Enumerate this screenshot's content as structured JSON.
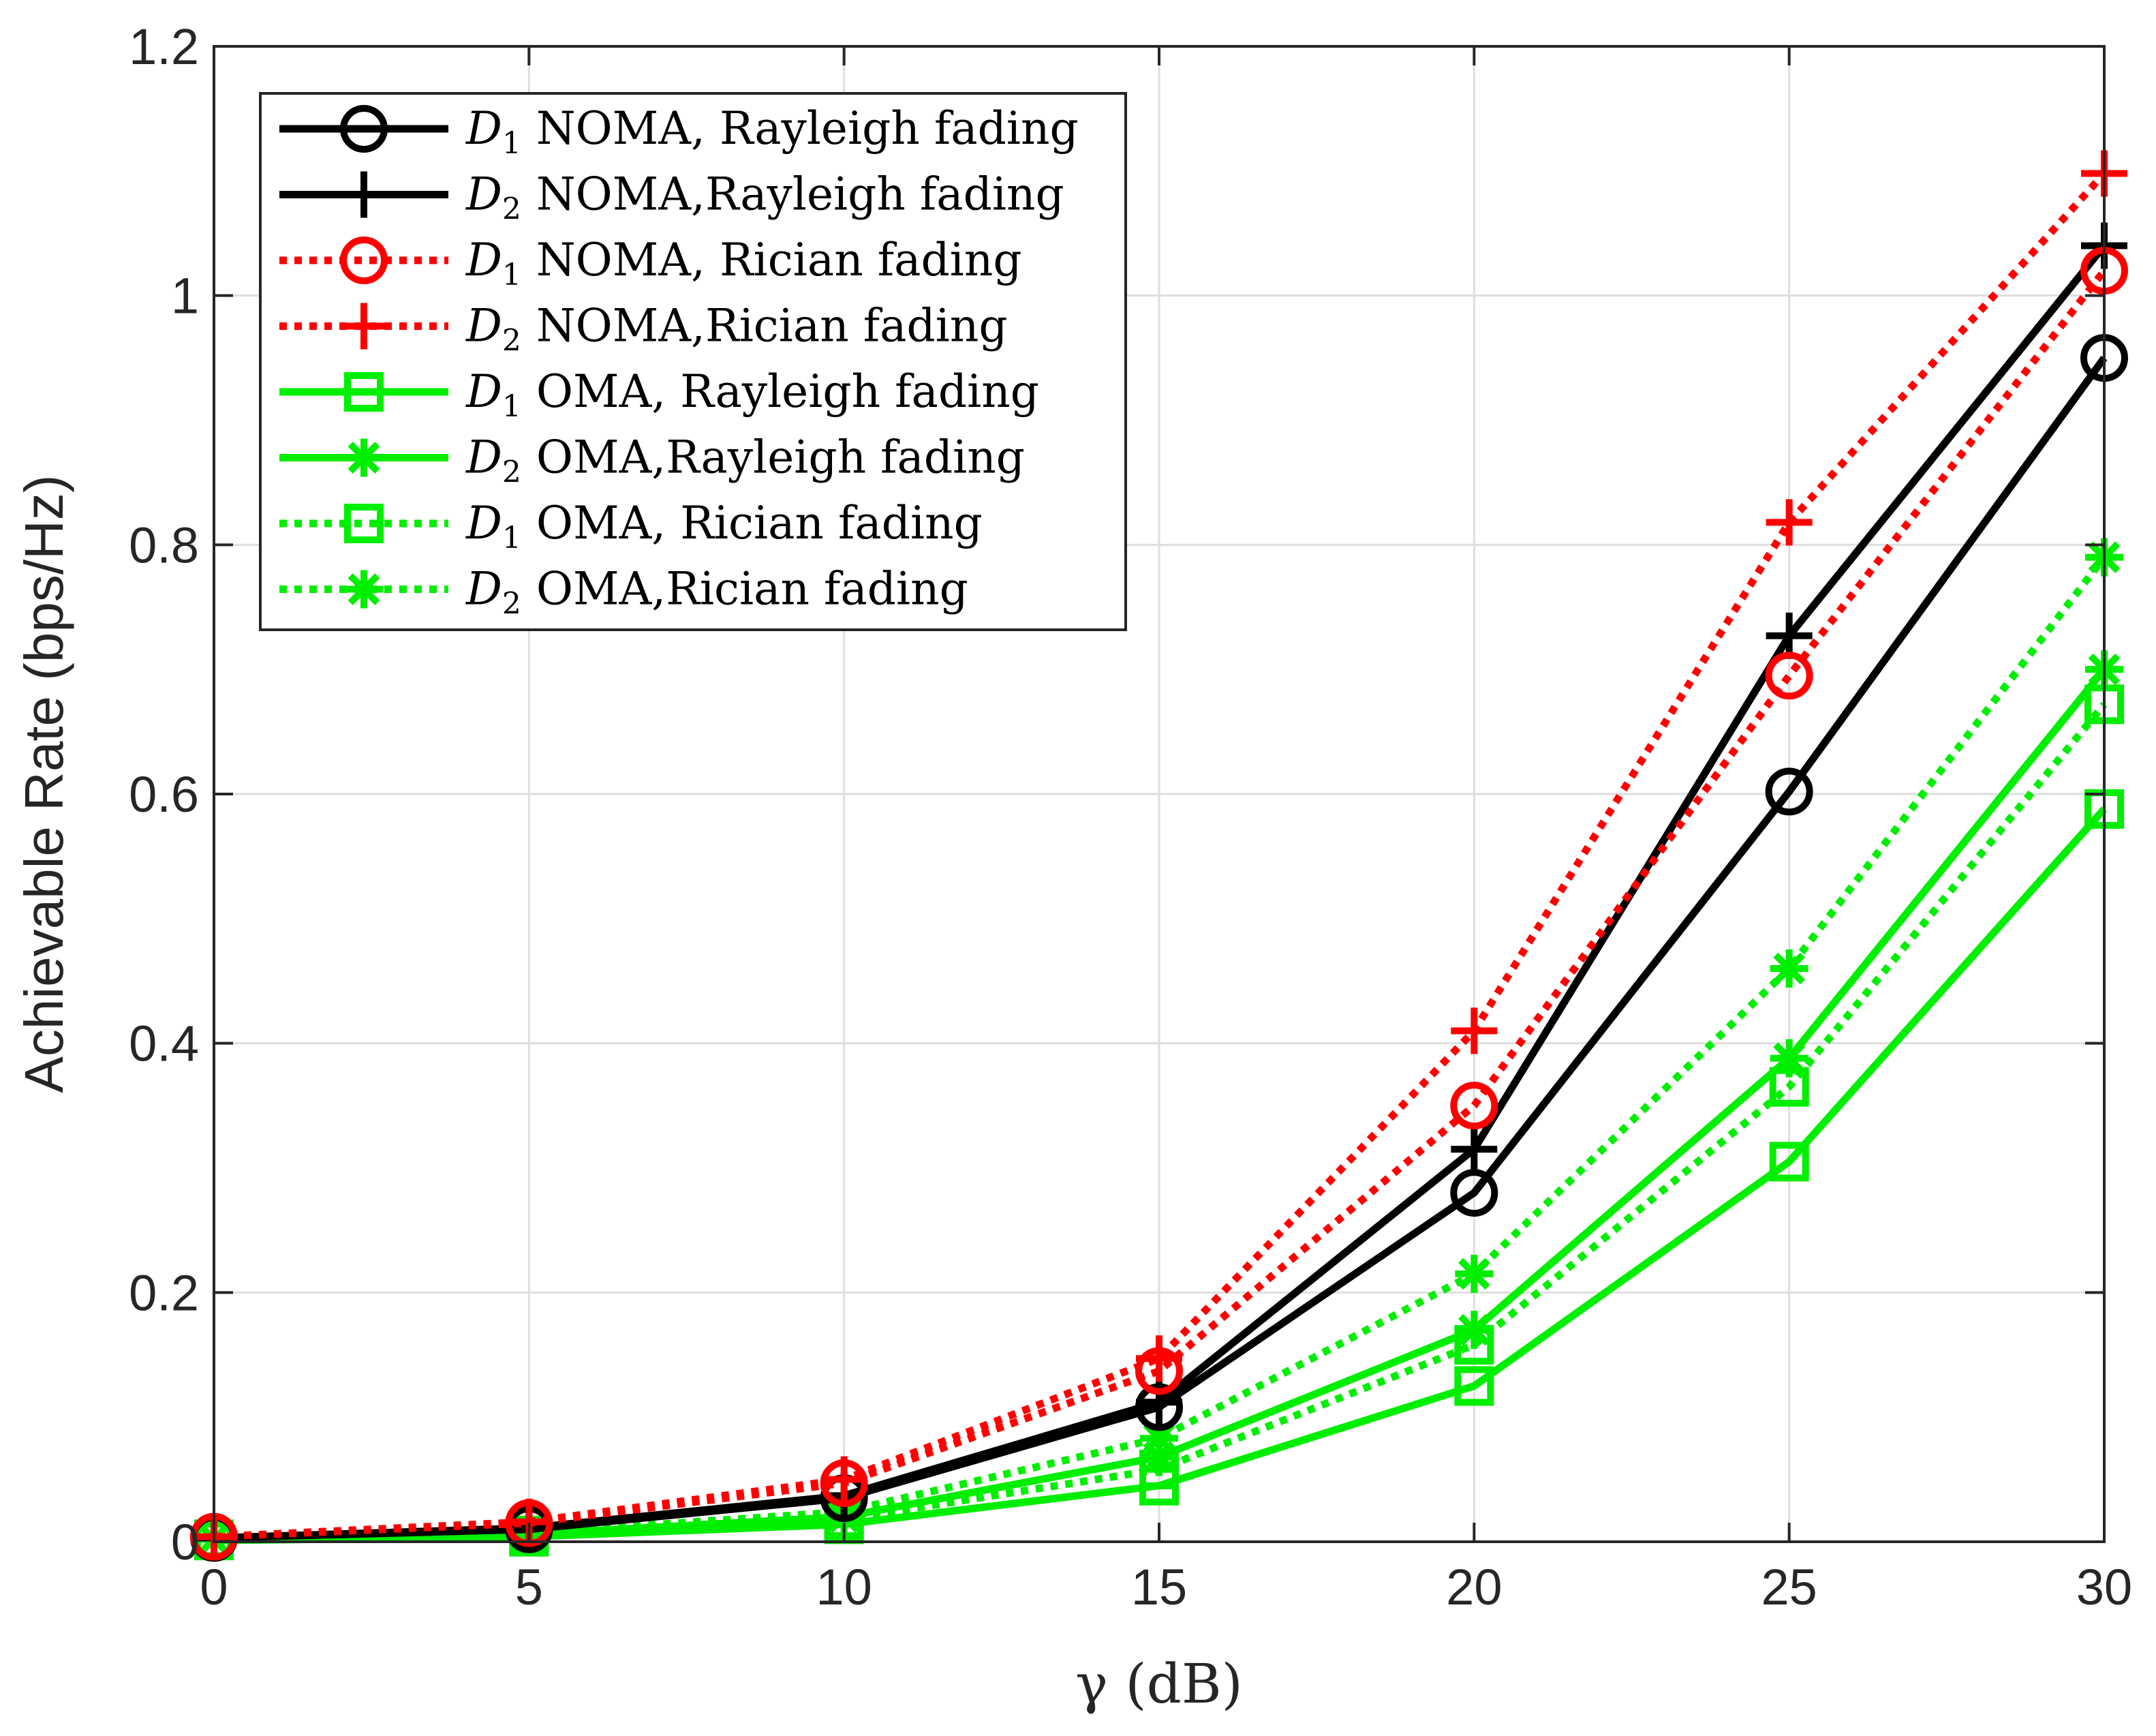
{
  "chart_data": {
    "type": "line",
    "title": "",
    "xlabel": "γ (dB)",
    "ylabel": "Achievable Rate (bps/Hz)",
    "x": [
      0,
      5,
      10,
      15,
      20,
      25,
      30
    ],
    "xlim": [
      0,
      30
    ],
    "ylim": [
      0,
      1.2
    ],
    "xticks": [
      0,
      5,
      10,
      15,
      20,
      25,
      30
    ],
    "xtick_labels": [
      "0",
      "5",
      "10",
      "15",
      "20",
      "25",
      "30"
    ],
    "yticks": [
      0,
      0.2,
      0.4,
      0.6,
      0.8,
      1,
      1.2
    ],
    "ytick_labels": [
      "0",
      "0.2",
      "0.4",
      "0.6",
      "0.8",
      "1",
      "1.2"
    ],
    "grid": true,
    "legend_position": "top-left",
    "series": [
      {
        "name": "D1 NOMA, Rayleigh fading",
        "var": "D",
        "sub": "1",
        "label": "NOMA, Rayleigh fading",
        "color": "#000000",
        "style": "solid",
        "marker": "circle",
        "values": [
          0.003,
          0.01,
          0.035,
          0.108,
          0.28,
          0.602,
          0.95
        ]
      },
      {
        "name": "D2 NOMA,Rayleigh fading",
        "var": "D",
        "sub": "2",
        "label": "NOMA,Rayleigh fading",
        "color": "#000000",
        "style": "solid",
        "marker": "plus",
        "values": [
          0.003,
          0.011,
          0.037,
          0.112,
          0.315,
          0.727,
          1.04
        ]
      },
      {
        "name": "D1 NOMA, Rician fading",
        "var": "D",
        "sub": "1",
        "label": "NOMA, Rician fading",
        "color": "#ff0000",
        "style": "dotted",
        "marker": "circle",
        "values": [
          0.004,
          0.015,
          0.047,
          0.137,
          0.35,
          0.695,
          1.02
        ]
      },
      {
        "name": "D2 NOMA,Rician fading",
        "var": "D",
        "sub": "2",
        "label": "NOMA,Rician fading",
        "color": "#ff0000",
        "style": "dotted",
        "marker": "plus",
        "values": [
          0.004,
          0.016,
          0.05,
          0.147,
          0.41,
          0.818,
          1.098
        ]
      },
      {
        "name": "D1 OMA, Rayleigh fading",
        "var": "D",
        "sub": "1",
        "label": "OMA, Rayleigh fading",
        "color": "#00ee00",
        "style": "solid",
        "marker": "square",
        "values": [
          0.001,
          0.004,
          0.014,
          0.045,
          0.125,
          0.305,
          0.588
        ]
      },
      {
        "name": "D2 OMA,Rayleigh fading",
        "var": "D",
        "sub": "2",
        "label": "OMA,Rayleigh fading",
        "color": "#00ee00",
        "style": "solid",
        "marker": "asterisk",
        "values": [
          0.002,
          0.006,
          0.02,
          0.068,
          0.17,
          0.388,
          0.7
        ]
      },
      {
        "name": "D1 OMA, Rician fading",
        "var": "D",
        "sub": "1",
        "label": "OMA, Rician fading",
        "color": "#00ee00",
        "style": "dotted",
        "marker": "square",
        "values": [
          0.002,
          0.005,
          0.018,
          0.058,
          0.158,
          0.365,
          0.672
        ]
      },
      {
        "name": "D2 OMA,Rician fading",
        "var": "D",
        "sub": "2",
        "label": "OMA,Rician fading",
        "color": "#00ee00",
        "style": "dotted",
        "marker": "asterisk",
        "values": [
          0.002,
          0.007,
          0.024,
          0.083,
          0.215,
          0.46,
          0.79
        ]
      }
    ]
  }
}
